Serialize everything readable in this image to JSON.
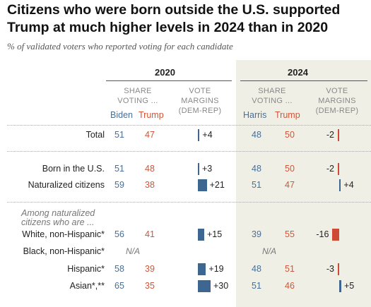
{
  "title": "Citizens who were born outside the U.S. supported Trump at much higher levels in 2024 than in 2020",
  "subtitle": "% of validated voters who reported voting for each candidate",
  "headers": {
    "y2020": "2020",
    "y2024": "2024",
    "share_voting_line1": "SHARE",
    "share_voting_line2": "VOTING ...",
    "vote_margins_line1": "VOTE",
    "vote_margins_line2": "MARGINS",
    "vote_margins_line3": "(DEM-REP)",
    "biden": "Biden",
    "trump": "Trump",
    "harris": "Harris",
    "trump2": "Trump"
  },
  "group_note_line1": "Among naturalized",
  "group_note_line2": "citizens who are ...",
  "na_text": "N/A",
  "colors": {
    "dem": "#3d6690",
    "rep": "#cf4a34",
    "panel": "#f0efe6"
  },
  "chart_data": {
    "type": "table",
    "rows": [
      {
        "label": "Total",
        "biden": 51,
        "trump2020": 47,
        "margin2020": 4,
        "margin2020_label": "+4",
        "harris": 48,
        "trump2024": 50,
        "margin2024": -2,
        "margin2024_label": "-2"
      },
      {
        "label": "Born in the U.S.",
        "biden": 51,
        "trump2020": 48,
        "margin2020": 3,
        "margin2020_label": "+3",
        "harris": 48,
        "trump2024": 50,
        "margin2024": -2,
        "margin2024_label": "-2"
      },
      {
        "label": "Naturalized citizens",
        "biden": 59,
        "trump2020": 38,
        "margin2020": 21,
        "margin2020_label": "+21",
        "harris": 51,
        "trump2024": 47,
        "margin2024": 4,
        "margin2024_label": "+4"
      },
      {
        "label": "White, non-Hispanic*",
        "biden": 56,
        "trump2020": 41,
        "margin2020": 15,
        "margin2020_label": "+15",
        "harris": 39,
        "trump2024": 55,
        "margin2024": -16,
        "margin2024_label": "-16"
      },
      {
        "label": "Black, non-Hispanic*",
        "biden": null,
        "trump2020": null,
        "margin2020": null,
        "margin2020_label": null,
        "harris": null,
        "trump2024": null,
        "margin2024": null,
        "margin2024_label": null
      },
      {
        "label": "Hispanic*",
        "biden": 58,
        "trump2020": 39,
        "margin2020": 19,
        "margin2020_label": "+19",
        "harris": 48,
        "trump2024": 51,
        "margin2024": -3,
        "margin2024_label": "-3"
      },
      {
        "label": "Asian*,**",
        "biden": 65,
        "trump2020": 35,
        "margin2020": 30,
        "margin2020_label": "+30",
        "harris": 51,
        "trump2024": 46,
        "margin2024": 5,
        "margin2024_label": "+5"
      }
    ]
  }
}
